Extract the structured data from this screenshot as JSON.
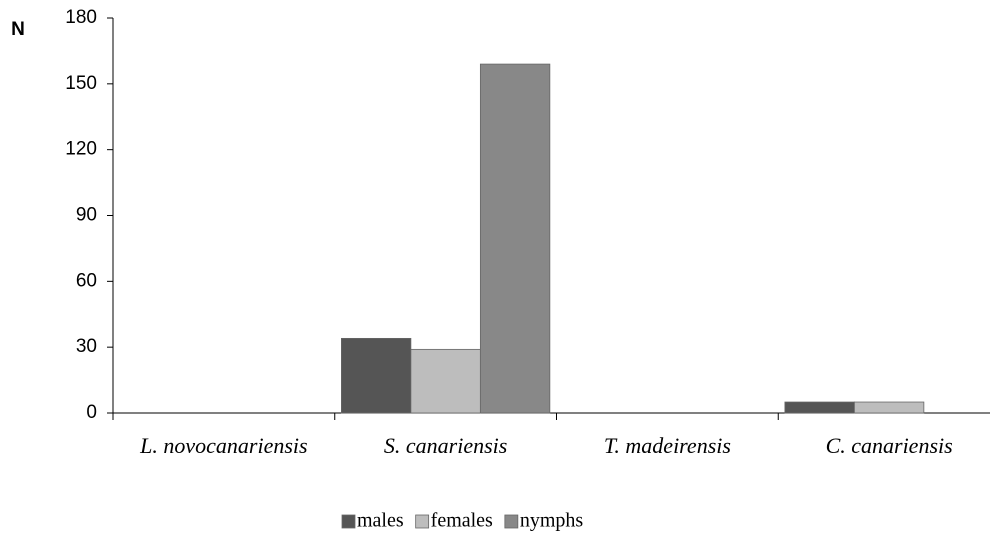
{
  "chart_data": {
    "type": "bar",
    "y_label": "N",
    "categories": [
      "L. novocanariensis",
      "S. canariensis",
      "T. madeirensis",
      "C. canariensis"
    ],
    "series": [
      {
        "name": "males",
        "color": "#555555",
        "values": [
          0,
          34,
          0,
          5
        ]
      },
      {
        "name": "females",
        "color": "#bdbdbd",
        "values": [
          0,
          29,
          0,
          5
        ]
      },
      {
        "name": "nymphs",
        "color": "#888888",
        "values": [
          0,
          159,
          0,
          0
        ]
      }
    ],
    "ylim": [
      0,
      180
    ],
    "yticks": [
      0,
      30,
      60,
      90,
      120,
      150,
      180
    ],
    "grid": false,
    "legend": "bottom"
  }
}
